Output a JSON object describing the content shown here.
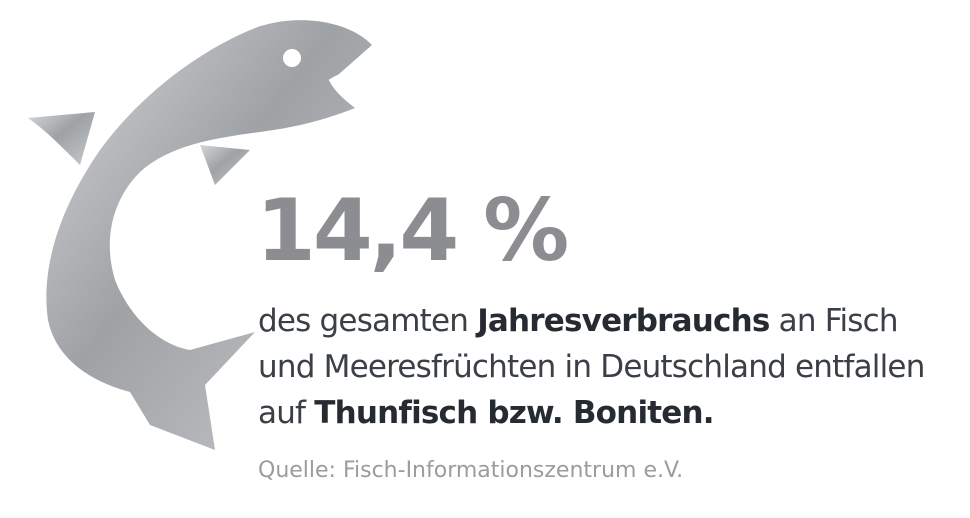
{
  "headline": "14,4 %",
  "body": {
    "lines": [
      [
        "des gesamten",
        "Jahresverbrauchs",
        "an Fisch"
      ],
      [
        "und Meeresfrüchten in Deutschland entfallen"
      ],
      [
        "auf",
        "Thunfisch bzw. Boniten."
      ]
    ]
  },
  "source": "Quelle: Fisch-Informationszentrum e.V."
}
